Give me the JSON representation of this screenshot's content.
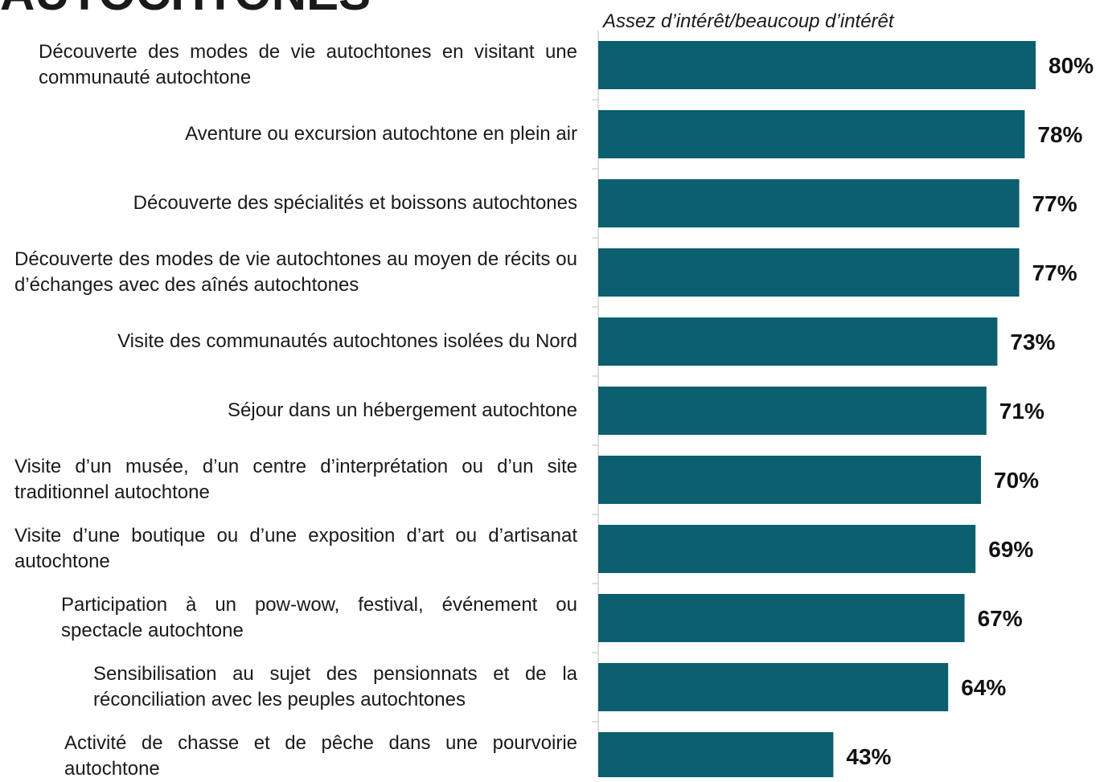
{
  "chart_data": {
    "type": "bar",
    "orientation": "horizontal",
    "title": "AUTOCHTONES",
    "subtitle": "Assez d’intérêt/beaucoup d’intérêt",
    "categories": [
      "Découverte des modes de vie autochtones en visitant une communauté autochtone",
      "Aventure ou excursion autochtone en plein air",
      "Découverte des spécialités et boissons autochtones",
      "Découverte des modes de vie autochtones au moyen de récits ou d’échanges avec des aînés autochtones",
      "Visite des communautés autochtones isolées du Nord",
      "Séjour dans un hébergement autochtone",
      "Visite d’un musée, d’un centre d’interprétation ou d’un site traditionnel autochtone",
      "Visite d’une boutique ou d’une exposition d’art ou d’artisanat autochtone",
      "Participation à un pow-wow, festival, événement ou spectacle autochtone",
      "Sensibilisation au sujet des pensionnats et de la réconciliation avec les peuples autochtones",
      "Activité de chasse et de pêche dans une pourvoirie autochtone"
    ],
    "values": [
      80,
      78,
      77,
      77,
      73,
      71,
      70,
      69,
      67,
      64,
      43
    ],
    "value_labels": [
      "80%",
      "78%",
      "77%",
      "77%",
      "73%",
      "71%",
      "70%",
      "69%",
      "67%",
      "64%",
      "43%"
    ],
    "color": "#0b5f6e",
    "xlim": [
      0,
      100
    ]
  }
}
